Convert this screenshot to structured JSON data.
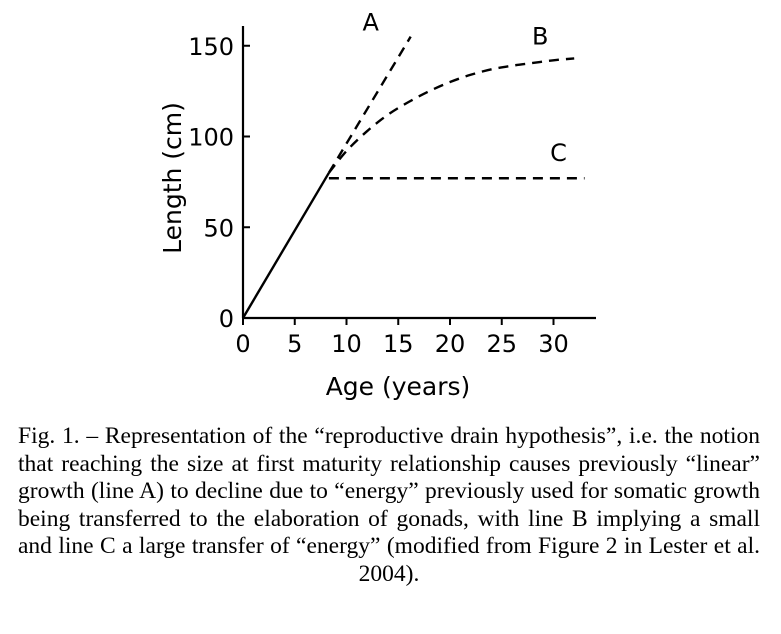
{
  "chart_data": {
    "type": "line",
    "xlabel": "Age (years)",
    "ylabel": "Length (cm)",
    "xlim": [
      0,
      34
    ],
    "ylim": [
      0,
      165
    ],
    "xticks": [
      0,
      5,
      10,
      15,
      20,
      25,
      30
    ],
    "yticks": [
      0,
      50,
      100,
      150
    ],
    "grid": false,
    "legend": "none",
    "series": [
      {
        "name": "A",
        "style": "dashed",
        "x": [
          8.3,
          16.2
        ],
        "y": [
          80,
          155
        ]
      },
      {
        "name": "B",
        "style": "dashed",
        "x": [
          8.3,
          10,
          12,
          14,
          16,
          18,
          20,
          22,
          24,
          26,
          28,
          30,
          32
        ],
        "y": [
          80,
          92,
          103,
          112,
          119,
          125,
          130,
          134,
          137,
          139,
          140.5,
          142,
          143
        ]
      },
      {
        "name": "C",
        "style": "dashed",
        "x": [
          8.3,
          33
        ],
        "y": [
          77,
          77
        ]
      },
      {
        "name": "",
        "style": "solid",
        "x": [
          0,
          8.3
        ],
        "y": [
          0,
          80
        ]
      }
    ]
  },
  "caption": "Fig. 1. – Representation of the “reproductive drain hypothesis”, i.e. the notion that reaching the size at first maturity relationship causes previously “linear” growth (line A) to decline due to “energy” previously used for somatic growth being transferred to the elaboration of gonads, with line B implying a small and line C a large transfer of “energy” (modified from Figure 2 in Lester et al. 2004)."
}
